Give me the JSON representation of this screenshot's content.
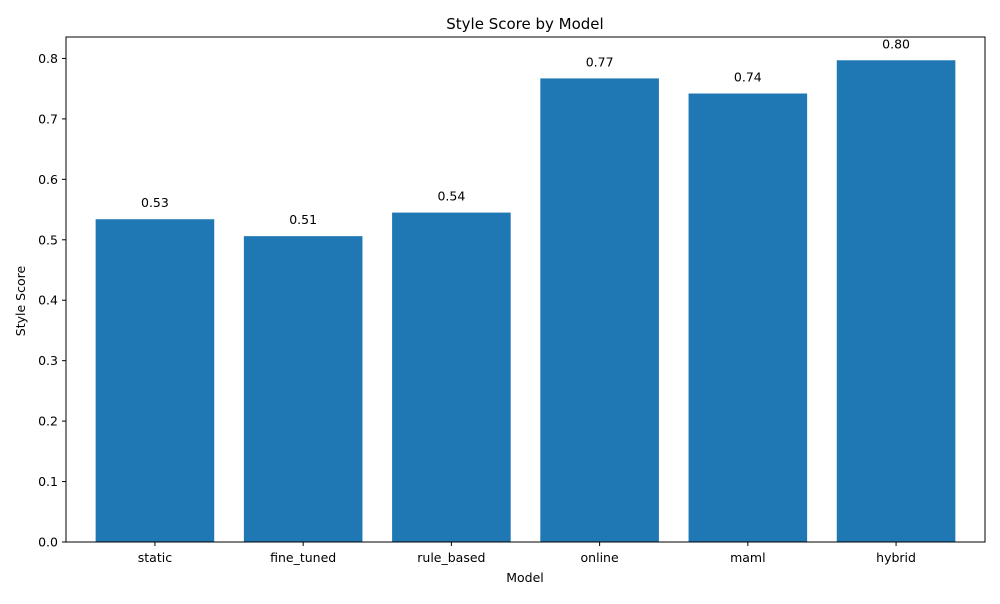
{
  "chart_data": {
    "type": "bar",
    "title": "Style Score by Model",
    "xlabel": "Model",
    "ylabel": "Style Score",
    "categories": [
      "static",
      "fine_tuned",
      "rule_based",
      "online",
      "maml",
      "hybrid"
    ],
    "values": [
      0.534,
      0.506,
      0.545,
      0.767,
      0.742,
      0.797
    ],
    "value_labels": [
      "0.53",
      "0.51",
      "0.54",
      "0.77",
      "0.74",
      "0.80"
    ],
    "ylim": [
      0,
      0.8355
    ],
    "yticks": [
      0.0,
      0.1,
      0.2,
      0.3,
      0.4,
      0.5,
      0.6,
      0.7,
      0.8
    ],
    "ytick_labels": [
      "0.0",
      "0.1",
      "0.2",
      "0.3",
      "0.4",
      "0.5",
      "0.6",
      "0.7",
      "0.8"
    ],
    "bar_color": "#1f77b4",
    "grid": false,
    "legend": "none"
  }
}
